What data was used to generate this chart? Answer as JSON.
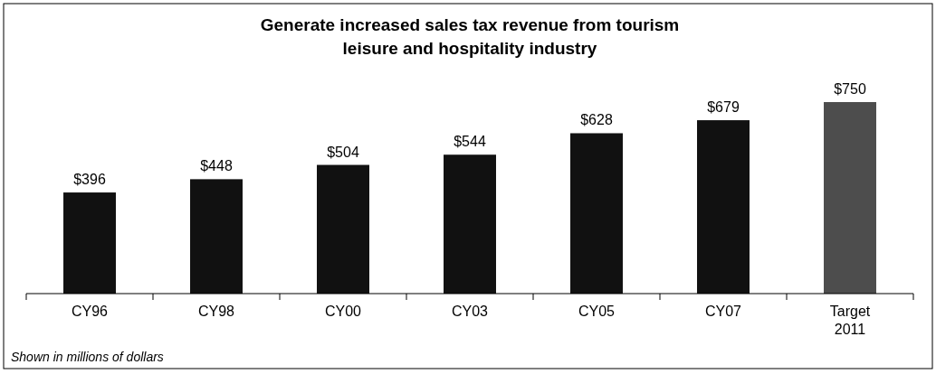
{
  "chart_data": {
    "type": "bar",
    "title": "Generate increased sales tax revenue from tourism leisure and hospitality industry",
    "categories": [
      "CY96",
      "CY98",
      "CY00",
      "CY03",
      "CY05",
      "CY07",
      "Target 2011"
    ],
    "values": [
      396,
      448,
      504,
      544,
      628,
      679,
      750
    ],
    "colors": [
      "#111111",
      "#111111",
      "#111111",
      "#111111",
      "#111111",
      "#111111",
      "#4d4d4d"
    ],
    "value_labels": [
      "$396",
      "$448",
      "$504",
      "$544",
      "$628",
      "$679",
      "$750"
    ],
    "annotations": [
      "Shown in millions of dollars"
    ]
  }
}
